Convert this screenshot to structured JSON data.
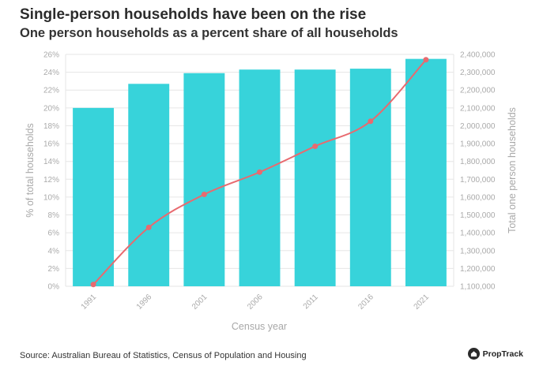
{
  "header": {
    "title": "Single-person households have been on the rise",
    "subtitle": "One person households as a percent share of all households"
  },
  "footer": {
    "source": "Source: Australian Bureau of Statistics, Census of Population and Housing",
    "brand": "PropTrack"
  },
  "colors": {
    "bar": "#37D3DA",
    "line": "#E86A6F",
    "grid": "#E6E6E6",
    "tick": "#AAAAAA"
  },
  "chart_data": {
    "type": "bar",
    "title": "Single-person households have been on the rise",
    "subtitle": "One person households as a percent share of all households",
    "xlabel": "Census year",
    "ylabel": "% of total households",
    "y2label": "Total one person households",
    "categories": [
      "1991",
      "1996",
      "2001",
      "2006",
      "2011",
      "2016",
      "2021"
    ],
    "ylim": [
      0,
      26
    ],
    "y2lim": [
      1100000,
      2400000
    ],
    "y_ticks": [
      "0%",
      "2%",
      "4%",
      "6%",
      "8%",
      "10%",
      "12%",
      "14%",
      "16%",
      "18%",
      "20%",
      "22%",
      "24%",
      "26%"
    ],
    "y2_ticks": [
      "1,100,000",
      "1,200,000",
      "1,300,000",
      "1,400,000",
      "1,500,000",
      "1,600,000",
      "1,700,000",
      "1,800,000",
      "1,900,000",
      "2,000,000",
      "2,100,000",
      "2,200,000",
      "2,300,000",
      "2,400,000"
    ],
    "grid": true,
    "series": [
      {
        "name": "% of total households",
        "type": "bar",
        "axis": "left",
        "values": [
          20.0,
          22.7,
          23.9,
          24.3,
          24.3,
          24.4,
          25.5
        ]
      },
      {
        "name": "Total one person households",
        "type": "line",
        "axis": "right",
        "values": [
          1110000,
          1430000,
          1615000,
          1740000,
          1885000,
          2025000,
          2370000
        ]
      }
    ]
  }
}
